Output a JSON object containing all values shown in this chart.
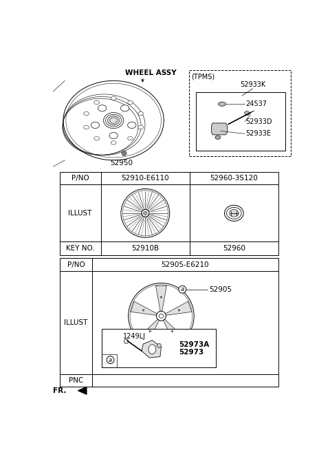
{
  "bg_color": "#ffffff",
  "line_color": "#000000",
  "wheel_assy_label": "WHEEL ASSY",
  "wheel_assy_part": "52950",
  "tpms_label": "(TPMS)",
  "tpms_parts": [
    "52933K",
    "52933E",
    "52933D",
    "24537"
  ],
  "table1_col1": "KEY NO.",
  "table1_col2_key": "52910B",
  "table1_col3_key": "52960",
  "table1_row2_label": "ILLUST",
  "table1_col2_pno": "52910-E6110",
  "table1_col3_pno": "52960-3S120",
  "table1_pno_label": "P/NO",
  "table2_pnc_label": "PNC",
  "table2_illust_label": "ILLUST",
  "table2_part1": "52905",
  "table2_sub_label1": "1249LJ",
  "table2_sub_label2": "52973",
  "table2_sub_label3": "52973A",
  "table2_pno_label": "P/NO",
  "table2_pno": "52905-E6210",
  "fr_label": "FR."
}
